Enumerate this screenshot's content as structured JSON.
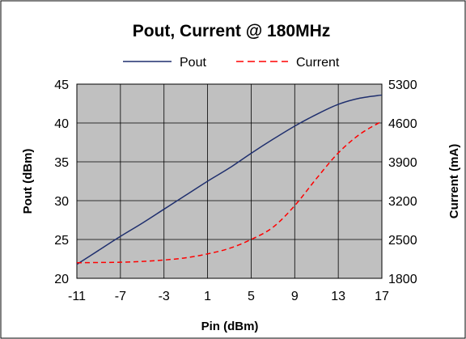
{
  "chart_data": {
    "type": "line",
    "title": "Pout, Current @ 180MHz",
    "xlabel": "Pin (dBm)",
    "ylabel": "Pout  (dBm)",
    "y2label": "Current (mA)",
    "xlim": [
      -11,
      17
    ],
    "ylim": [
      20,
      45
    ],
    "y2lim": [
      1800,
      5300
    ],
    "x_ticks": [
      "-11",
      "-7",
      "-3",
      "1",
      "5",
      "9",
      "13",
      "17"
    ],
    "y_ticks": [
      "20",
      "25",
      "30",
      "35",
      "40",
      "45"
    ],
    "y2_ticks": [
      "1800",
      "2500",
      "3200",
      "3900",
      "4600",
      "5300"
    ],
    "grid": true,
    "legend_position": "top",
    "plot_background": "#c0c0c0",
    "series": [
      {
        "name": "Pout",
        "axis": "left",
        "color": "#1f2f6e",
        "style": "solid",
        "x": [
          -11,
          -9,
          -7,
          -5,
          -3,
          -1,
          1,
          3,
          5,
          7,
          9,
          11,
          13,
          15,
          17
        ],
        "y": [
          21.8,
          23.6,
          25.4,
          27.1,
          28.9,
          30.7,
          32.5,
          34.2,
          36.1,
          37.9,
          39.6,
          41.1,
          42.4,
          43.2,
          43.6
        ]
      },
      {
        "name": "Current",
        "axis": "right",
        "color": "#ff0000",
        "style": "dashed",
        "x": [
          -11,
          -9,
          -7,
          -5,
          -3,
          -1,
          1,
          3,
          5,
          7,
          9,
          11,
          13,
          15,
          17
        ],
        "y": [
          2080,
          2085,
          2090,
          2105,
          2130,
          2170,
          2240,
          2340,
          2500,
          2720,
          3110,
          3600,
          4060,
          4400,
          4630
        ]
      }
    ]
  }
}
